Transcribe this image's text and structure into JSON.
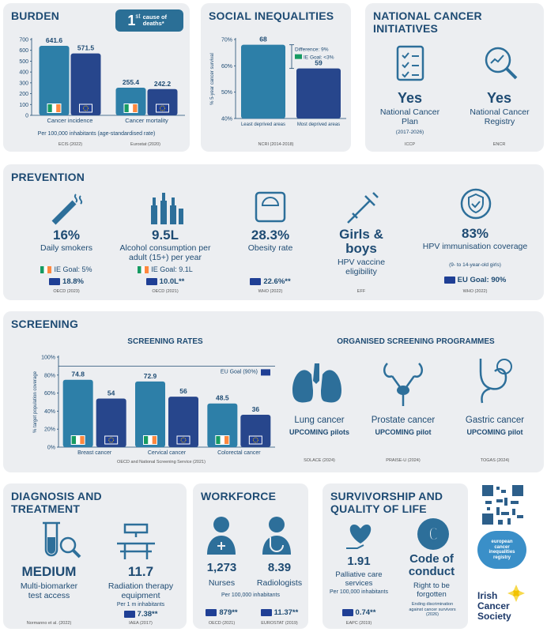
{
  "burden": {
    "title": "BURDEN",
    "badge": {
      "number": "1",
      "suffix": "st",
      "text": "cause of deaths*"
    },
    "chart": {
      "type": "bar",
      "categories": [
        "Cancer incidence",
        "Cancer mortality"
      ],
      "series": [
        {
          "color": "#2d7fa8",
          "values": [
            641.6,
            255.4
          ]
        },
        {
          "color": "#27468c",
          "values": [
            571.5,
            242.2
          ]
        }
      ],
      "ylim": [
        0,
        700
      ],
      "yticks": [
        0,
        100,
        200,
        300,
        400,
        500,
        600,
        700
      ]
    },
    "caption": "Per 100,000 inhabitants (age-standardised rate)",
    "sources": [
      "ECIS (2022)",
      "Eurostat (2020)"
    ]
  },
  "social_inequalities": {
    "title": "SOCIAL INEQUALITIES",
    "chart": {
      "type": "bar",
      "y_label": "% 5-year cancer survival",
      "categories": [
        "Least deprived areas",
        "Most deprived areas"
      ],
      "series": [
        {
          "colors": [
            "#2d7fa8",
            "#27468c"
          ],
          "values": [
            68,
            59
          ]
        }
      ],
      "ylim": [
        40,
        70
      ],
      "yticks": [
        {
          "value": 40,
          "label": "40%"
        },
        {
          "value": 50,
          "label": "50%"
        },
        {
          "value": 60,
          "label": "60%"
        },
        {
          "value": 70,
          "label": "70%"
        }
      ],
      "annotations": [
        "Difference: 9%",
        "IE Goal: <3%"
      ]
    },
    "source": "NCRI (2014-2018)"
  },
  "national_initiatives": {
    "title": "NATIONAL CANCER INITIATIVES",
    "items": [
      {
        "value": "Yes",
        "label": "National Cancer Plan",
        "period": "(2017-2026)",
        "source": "ICCP"
      },
      {
        "value": "Yes",
        "label": "National Cancer Registry",
        "source": "ENCR"
      }
    ]
  },
  "prevention": {
    "title": "PREVENTION",
    "items": [
      {
        "value": "16%",
        "label": "Daily smokers",
        "goal": "IE Goal: 5%",
        "eu": "18.8%",
        "source": "OECD (2023)"
      },
      {
        "value": "9.5L",
        "label": "Alcohol consumption per adult (15+) per year",
        "goal": "IE Goal: 9.1L",
        "eu": "10.0L**",
        "source": "OECD (2021)"
      },
      {
        "value": "28.3%",
        "label": "Obesity rate",
        "eu": "22.6%**",
        "source": "WHO (2022)"
      },
      {
        "value": "Girls & boys",
        "label": "HPV vaccine eligibility",
        "source": "EFF"
      },
      {
        "value": "83%",
        "label": "HPV immunisation coverage",
        "note": "(9- to 14-year-old girls)",
        "eu": "EU Goal: 90%",
        "source": "WHO (2022)"
      }
    ]
  },
  "screening": {
    "title": "SCREENING",
    "chart": {
      "type": "bar",
      "title": "SCREENING RATES",
      "y_label": "% target population coverage",
      "categories": [
        "Breast cancer",
        "Cervical cancer",
        "Colorectal cancer"
      ],
      "series": [
        {
          "color": "#2d7fa8",
          "values": [
            74.8,
            72.9,
            48.5
          ]
        },
        {
          "color": "#27468c",
          "values": [
            54,
            56,
            36
          ]
        }
      ],
      "ylim": [
        0,
        100
      ],
      "yticks": [
        {
          "value": 0,
          "label": "0%"
        },
        {
          "value": 20,
          "label": "20%"
        },
        {
          "value": 40,
          "label": "40%"
        },
        {
          "value": 60,
          "label": "60%"
        },
        {
          "value": 80,
          "label": "80%"
        },
        {
          "value": 100,
          "label": "100%"
        }
      ],
      "reference": {
        "value": 90,
        "label": "EU Goal (90%)"
      },
      "source": "OECD and National Screening Service (2021)"
    },
    "programmes": {
      "title": "ORGANISED SCREENING PROGRAMMES",
      "items": [
        {
          "label": "Lung cancer",
          "status": "UPCOMING pilots",
          "source": "SOLACE (2024)"
        },
        {
          "label": "Prostate cancer",
          "status": "UPCOMING pilot",
          "source": "PRAISE-U (2024)"
        },
        {
          "label": "Gastric cancer",
          "status": "UPCOMING pilot",
          "source": "TOGAS (2024)"
        }
      ]
    }
  },
  "diagnosis": {
    "title": "DIAGNOSIS AND TREATMENT",
    "items": [
      {
        "value": "MEDIUM",
        "label": "Multi-biomarker test access",
        "source": "Normanno et al. (2022)"
      },
      {
        "value": "11.7",
        "label": "Radiation therapy equipment",
        "unit": "Per 1 m inhabitants",
        "eu": "7.38**",
        "source": "IAEA (2017)"
      }
    ]
  },
  "workforce": {
    "title": "WORKFORCE",
    "items": [
      {
        "value": "1,273",
        "label": "Nurses",
        "eu": "879**",
        "source": "OECD (2021)"
      },
      {
        "value": "8.39",
        "label": "Radiologists",
        "eu": "11.37**",
        "source": "EUROSTAT (2019)"
      }
    ],
    "unit": "Per 100,000 inhabitants"
  },
  "survivorship": {
    "title": "SURVIVORSHIP AND QUALITY OF LIFE",
    "items": [
      {
        "value": "1.91",
        "label": "Palliative care services",
        "unit": "Per 100,000 inhabitants",
        "eu": "0.74**",
        "source": "EAPC (2019)"
      },
      {
        "value": "Code of conduct",
        "label": "Right to be forgotten",
        "note": "Ending discrimination against cancer survivors (2026)"
      }
    ]
  },
  "logos": {
    "ecir": "european cancer inequalities registry",
    "society": "Irish Cancer Society"
  }
}
